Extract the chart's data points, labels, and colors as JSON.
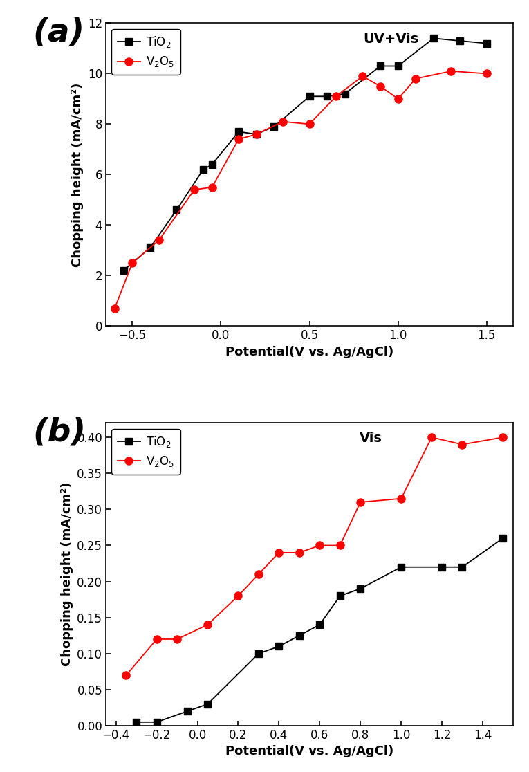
{
  "panel_a": {
    "title": "UV+Vis",
    "xlabel": "Potential(V vs. Ag/AgCl)",
    "ylabel": "Chopping height (mA/cm²)",
    "tio2_x": [
      -0.55,
      -0.4,
      -0.25,
      -0.1,
      -0.05,
      0.1,
      0.2,
      0.3,
      0.5,
      0.6,
      0.7,
      0.9,
      1.0,
      1.2,
      1.35,
      1.5
    ],
    "tio2_y": [
      2.2,
      3.1,
      4.6,
      6.2,
      6.4,
      7.7,
      7.6,
      7.9,
      9.1,
      9.1,
      9.2,
      10.3,
      10.3,
      11.4,
      11.3,
      11.2
    ],
    "v2o5_x": [
      -0.6,
      -0.5,
      -0.35,
      -0.15,
      -0.05,
      0.1,
      0.2,
      0.35,
      0.5,
      0.65,
      0.8,
      0.9,
      1.0,
      1.1,
      1.3,
      1.5
    ],
    "v2o5_y": [
      0.7,
      2.5,
      3.4,
      5.4,
      5.5,
      7.4,
      7.6,
      8.1,
      8.0,
      9.1,
      9.9,
      9.5,
      9.0,
      9.8,
      10.1,
      10.0
    ],
    "ylim": [
      0,
      12
    ],
    "xlim": [
      -0.65,
      1.65
    ],
    "yticks": [
      0,
      2,
      4,
      6,
      8,
      10,
      12
    ],
    "xticks": [
      -0.5,
      0.0,
      0.5,
      1.0,
      1.5
    ]
  },
  "panel_b": {
    "title": "Vis",
    "xlabel": "Potential(V vs. Ag/AgCl)",
    "ylabel": "Chopping height (mA/cm²)",
    "tio2_x": [
      -0.3,
      -0.2,
      -0.05,
      0.05,
      0.3,
      0.4,
      0.5,
      0.6,
      0.7,
      0.8,
      1.0,
      1.2,
      1.3,
      1.5
    ],
    "tio2_y": [
      0.005,
      0.005,
      0.02,
      0.03,
      0.1,
      0.11,
      0.125,
      0.14,
      0.18,
      0.19,
      0.22,
      0.22,
      0.22,
      0.26
    ],
    "v2o5_x": [
      -0.35,
      -0.2,
      -0.1,
      0.05,
      0.2,
      0.3,
      0.4,
      0.5,
      0.6,
      0.7,
      0.8,
      1.0,
      1.15,
      1.3,
      1.5
    ],
    "v2o5_y": [
      0.07,
      0.12,
      0.12,
      0.14,
      0.18,
      0.21,
      0.24,
      0.24,
      0.25,
      0.25,
      0.31,
      0.315,
      0.4,
      0.39,
      0.4
    ],
    "ylim": [
      0,
      0.42
    ],
    "xlim": [
      -0.45,
      1.55
    ],
    "yticks": [
      0.0,
      0.05,
      0.1,
      0.15,
      0.2,
      0.25,
      0.3,
      0.35,
      0.4
    ],
    "xticks": [
      -0.4,
      -0.2,
      0.0,
      0.2,
      0.4,
      0.6,
      0.8,
      1.0,
      1.2,
      1.4
    ]
  },
  "tio2_color": "#000000",
  "v2o5_color": "#ff0000",
  "tio2_label": "TiO$_2$",
  "v2o5_label": "V$_2$O$_5$",
  "label_a": "(a)",
  "label_b": "(b)",
  "label_fontsize": 34,
  "title_fontsize": 14,
  "axis_label_fontsize": 13,
  "tick_fontsize": 12,
  "legend_fontsize": 12
}
